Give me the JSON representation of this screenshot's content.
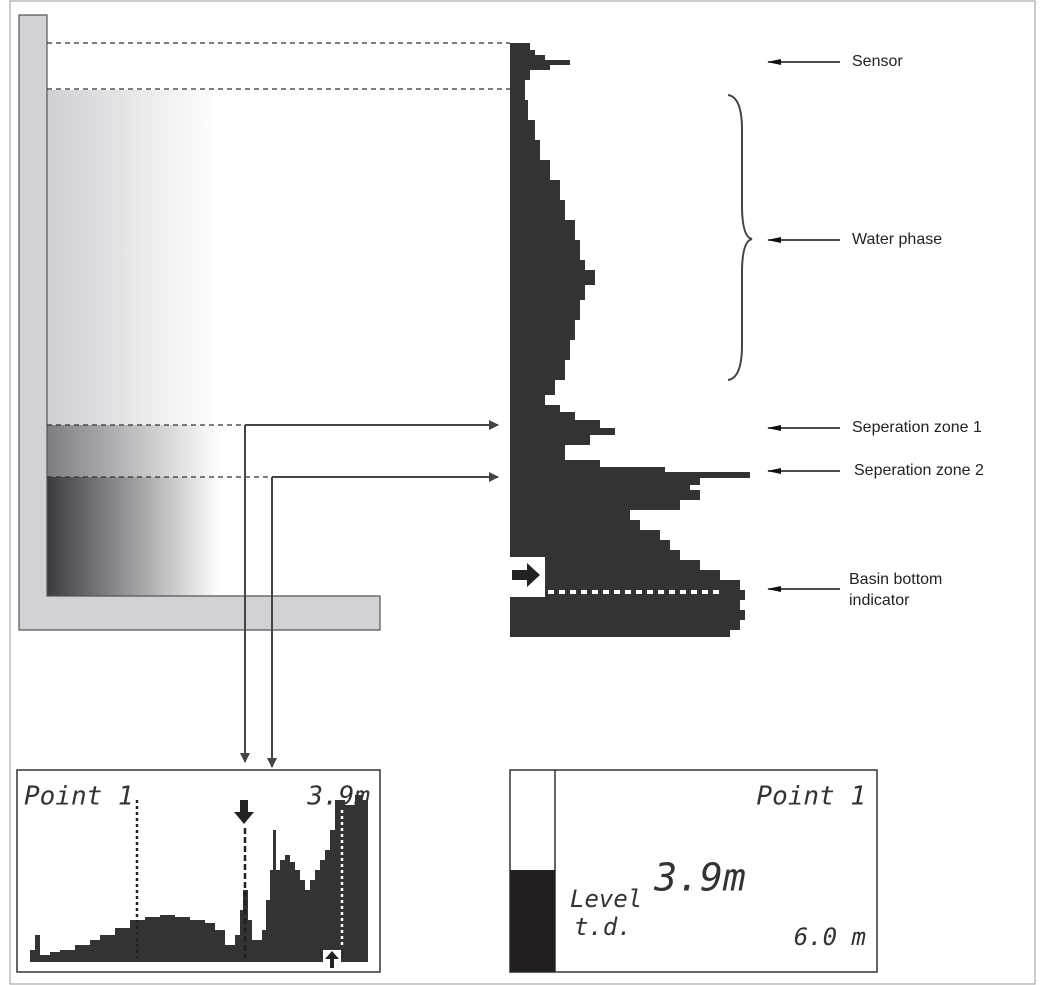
{
  "labels": {
    "sensor": "Sensor",
    "water_phase": "Water phase",
    "separation_zone_1": "Seperation zone 1",
    "separation_zone_2": "Seperation zone 2",
    "basin_bottom": [
      "Basin bottom",
      "indicator"
    ]
  },
  "echo_display": {
    "title": "Point 1",
    "value": "3.9m"
  },
  "level_display": {
    "title": "Point 1",
    "value": "3.9m",
    "label": "Level",
    "sublabel": "t.d.",
    "distance": "6.0 m"
  }
}
